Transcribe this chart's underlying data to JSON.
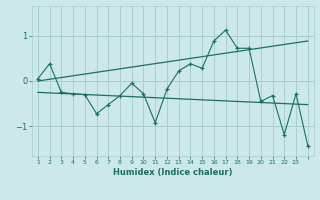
{
  "xlabel": "Humidex (Indice chaleur)",
  "ylabel": "",
  "bg_color": "#cce8e8",
  "grid_color": "#aacfcf",
  "line_color": "#1a7060",
  "xlim": [
    -0.5,
    23.5
  ],
  "ylim": [
    -1.65,
    1.65
  ],
  "yticks": [
    -1,
    0,
    1
  ],
  "xticks": [
    0,
    1,
    2,
    3,
    4,
    5,
    6,
    7,
    8,
    9,
    10,
    11,
    12,
    13,
    14,
    15,
    16,
    17,
    18,
    19,
    20,
    21,
    22,
    23
  ],
  "series1_x": [
    0,
    1,
    2,
    3,
    4,
    5,
    6,
    7,
    8,
    9,
    10,
    11,
    12,
    13,
    14,
    15,
    16,
    17,
    18,
    19,
    20,
    21,
    22,
    23
  ],
  "series1_y": [
    0.05,
    0.38,
    -0.25,
    -0.28,
    -0.3,
    -0.72,
    -0.52,
    -0.32,
    -0.05,
    -0.28,
    -0.92,
    -0.18,
    0.22,
    0.38,
    0.28,
    0.88,
    1.12,
    0.72,
    0.72,
    -0.45,
    -0.32,
    -1.18,
    -0.28,
    -1.42
  ],
  "trend1_x": [
    0,
    23
  ],
  "trend1_y": [
    0.0,
    0.88
  ],
  "trend2_x": [
    0,
    23
  ],
  "trend2_y": [
    -0.25,
    -0.52
  ]
}
